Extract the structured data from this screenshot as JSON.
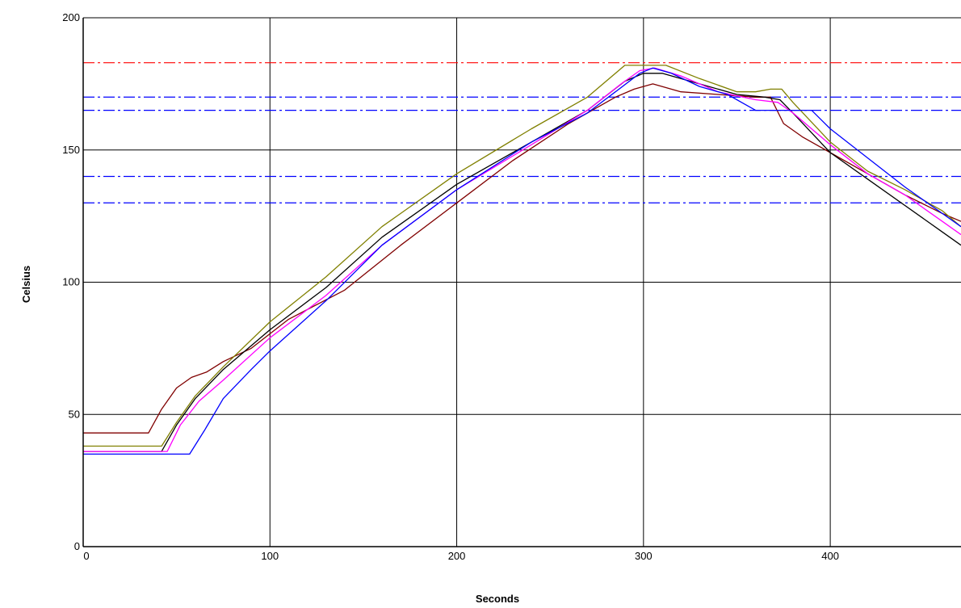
{
  "chart_data": {
    "type": "line",
    "title": "",
    "xlabel": "Seconds",
    "ylabel": "Celsius",
    "xlim": [
      0,
      470
    ],
    "ylim": [
      0,
      200
    ],
    "xticks": [
      0,
      100,
      200,
      300,
      400
    ],
    "yticks": [
      0,
      50,
      100,
      150,
      200
    ],
    "grid": true,
    "reference_lines": [
      {
        "y": 183,
        "color": "#ff0000",
        "style": "dash-dot"
      },
      {
        "y": 170,
        "color": "#0000ff",
        "style": "dash-dot"
      },
      {
        "y": 165,
        "color": "#0000ff",
        "style": "dash-dot"
      },
      {
        "y": 140,
        "color": "#0000ff",
        "style": "dash-dot"
      },
      {
        "y": 130,
        "color": "#0000ff",
        "style": "dash-dot"
      }
    ],
    "series": [
      {
        "color": "#800000",
        "points": [
          [
            0,
            43
          ],
          [
            35,
            43
          ],
          [
            42,
            52
          ],
          [
            50,
            60
          ],
          [
            58,
            64
          ],
          [
            66,
            66
          ],
          [
            75,
            70
          ],
          [
            90,
            75
          ],
          [
            110,
            86
          ],
          [
            140,
            97
          ],
          [
            170,
            114
          ],
          [
            200,
            130
          ],
          [
            230,
            146
          ],
          [
            260,
            160
          ],
          [
            285,
            170
          ],
          [
            295,
            173
          ],
          [
            305,
            175
          ],
          [
            320,
            172
          ],
          [
            340,
            171
          ],
          [
            360,
            170
          ],
          [
            368,
            170
          ],
          [
            375,
            160
          ],
          [
            385,
            155
          ],
          [
            400,
            149
          ],
          [
            420,
            141
          ],
          [
            440,
            133
          ],
          [
            460,
            126
          ],
          [
            470,
            123
          ]
        ]
      },
      {
        "color": "#808000",
        "points": [
          [
            0,
            38
          ],
          [
            42,
            38
          ],
          [
            50,
            47
          ],
          [
            60,
            57
          ],
          [
            75,
            68
          ],
          [
            100,
            85
          ],
          [
            130,
            102
          ],
          [
            160,
            121
          ],
          [
            200,
            141
          ],
          [
            240,
            158
          ],
          [
            270,
            170
          ],
          [
            290,
            182
          ],
          [
            300,
            182
          ],
          [
            312,
            182
          ],
          [
            330,
            177
          ],
          [
            350,
            172
          ],
          [
            360,
            172
          ],
          [
            368,
            173
          ],
          [
            374,
            173
          ],
          [
            380,
            168
          ],
          [
            400,
            153
          ],
          [
            420,
            142
          ],
          [
            440,
            135
          ],
          [
            460,
            127
          ],
          [
            470,
            121
          ]
        ]
      },
      {
        "color": "#000000",
        "points": [
          [
            0,
            36
          ],
          [
            42,
            36
          ],
          [
            50,
            46
          ],
          [
            60,
            56
          ],
          [
            75,
            67
          ],
          [
            100,
            82
          ],
          [
            130,
            98
          ],
          [
            160,
            117
          ],
          [
            200,
            137
          ],
          [
            240,
            153
          ],
          [
            270,
            165
          ],
          [
            290,
            176
          ],
          [
            300,
            179
          ],
          [
            310,
            179
          ],
          [
            330,
            175
          ],
          [
            350,
            171
          ],
          [
            365,
            170
          ],
          [
            373,
            169
          ],
          [
            380,
            164
          ],
          [
            400,
            149
          ],
          [
            420,
            139
          ],
          [
            440,
            129
          ],
          [
            460,
            119
          ],
          [
            470,
            114
          ]
        ]
      },
      {
        "color": "#ff00ff",
        "points": [
          [
            0,
            36
          ],
          [
            45,
            36
          ],
          [
            52,
            46
          ],
          [
            62,
            55
          ],
          [
            75,
            63
          ],
          [
            100,
            79
          ],
          [
            130,
            95
          ],
          [
            160,
            114
          ],
          [
            200,
            135
          ],
          [
            240,
            152
          ],
          [
            270,
            165
          ],
          [
            288,
            175
          ],
          [
            298,
            180
          ],
          [
            306,
            181
          ],
          [
            320,
            178
          ],
          [
            340,
            172
          ],
          [
            360,
            169
          ],
          [
            372,
            168
          ],
          [
            380,
            164
          ],
          [
            400,
            152
          ],
          [
            420,
            141
          ],
          [
            440,
            133
          ],
          [
            460,
            123
          ],
          [
            470,
            118
          ]
        ]
      },
      {
        "color": "#0000ff",
        "points": [
          [
            0,
            35
          ],
          [
            57,
            35
          ],
          [
            65,
            44
          ],
          [
            75,
            56
          ],
          [
            90,
            67
          ],
          [
            100,
            74
          ],
          [
            130,
            93
          ],
          [
            160,
            114
          ],
          [
            200,
            135
          ],
          [
            240,
            153
          ],
          [
            270,
            164
          ],
          [
            285,
            172
          ],
          [
            298,
            179
          ],
          [
            305,
            181
          ],
          [
            315,
            179
          ],
          [
            330,
            174
          ],
          [
            345,
            171
          ],
          [
            360,
            165
          ],
          [
            375,
            165
          ],
          [
            390,
            165
          ],
          [
            400,
            158
          ],
          [
            420,
            147
          ],
          [
            440,
            136
          ],
          [
            460,
            126
          ],
          [
            470,
            121
          ]
        ]
      }
    ]
  }
}
